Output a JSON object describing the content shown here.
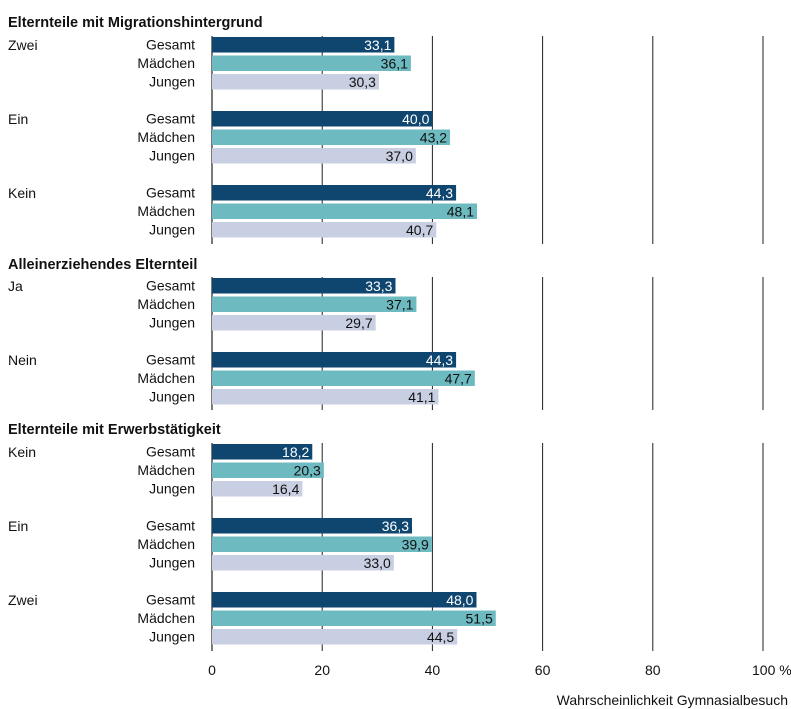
{
  "chart_data": {
    "type": "bar",
    "orientation": "horizontal",
    "xlabel": "Wahrscheinlichkeit Gymnasialbesuch",
    "xlim": [
      0,
      100
    ],
    "xticks": [
      "0",
      "20",
      "40",
      "60",
      "80",
      "100 %"
    ],
    "colors": {
      "Gesamt": "#0f4670",
      "Mädchen": "#6dbac1",
      "Jungen": "#c8cfe2"
    },
    "sections": [
      {
        "title": "Elternteile mit Migrationshintergrund",
        "groups": [
          {
            "label": "Zwei",
            "bars": [
              {
                "series": "Gesamt",
                "value": 33.1,
                "text": "33,1"
              },
              {
                "series": "Mädchen",
                "value": 36.1,
                "text": "36,1"
              },
              {
                "series": "Jungen",
                "value": 30.3,
                "text": "30,3"
              }
            ]
          },
          {
            "label": "Ein",
            "bars": [
              {
                "series": "Gesamt",
                "value": 40.0,
                "text": "40,0"
              },
              {
                "series": "Mädchen",
                "value": 43.2,
                "text": "43,2"
              },
              {
                "series": "Jungen",
                "value": 37.0,
                "text": "37,0"
              }
            ]
          },
          {
            "label": "Kein",
            "bars": [
              {
                "series": "Gesamt",
                "value": 44.3,
                "text": "44,3"
              },
              {
                "series": "Mädchen",
                "value": 48.1,
                "text": "48,1"
              },
              {
                "series": "Jungen",
                "value": 40.7,
                "text": "40,7"
              }
            ]
          }
        ]
      },
      {
        "title": "Alleinerziehendes Elternteil",
        "groups": [
          {
            "label": "Ja",
            "bars": [
              {
                "series": "Gesamt",
                "value": 33.3,
                "text": "33,3"
              },
              {
                "series": "Mädchen",
                "value": 37.1,
                "text": "37,1"
              },
              {
                "series": "Jungen",
                "value": 29.7,
                "text": "29,7"
              }
            ]
          },
          {
            "label": "Nein",
            "bars": [
              {
                "series": "Gesamt",
                "value": 44.3,
                "text": "44,3"
              },
              {
                "series": "Mädchen",
                "value": 47.7,
                "text": "47,7"
              },
              {
                "series": "Jungen",
                "value": 41.1,
                "text": "41,1"
              }
            ]
          }
        ]
      },
      {
        "title": "Elternteile mit Erwerbstätigkeit",
        "groups": [
          {
            "label": "Kein",
            "bars": [
              {
                "series": "Gesamt",
                "value": 18.2,
                "text": "18,2"
              },
              {
                "series": "Mädchen",
                "value": 20.3,
                "text": "20,3"
              },
              {
                "series": "Jungen",
                "value": 16.4,
                "text": "16,4"
              }
            ]
          },
          {
            "label": "Ein",
            "bars": [
              {
                "series": "Gesamt",
                "value": 36.3,
                "text": "36,3"
              },
              {
                "series": "Mädchen",
                "value": 39.9,
                "text": "39,9"
              },
              {
                "series": "Jungen",
                "value": 33.0,
                "text": "33,0"
              }
            ]
          },
          {
            "label": "Zwei",
            "bars": [
              {
                "series": "Gesamt",
                "value": 48.0,
                "text": "48,0"
              },
              {
                "series": "Mädchen",
                "value": 51.5,
                "text": "51,5"
              },
              {
                "series": "Jungen",
                "value": 44.5,
                "text": "44,5"
              }
            ]
          }
        ]
      }
    ]
  }
}
